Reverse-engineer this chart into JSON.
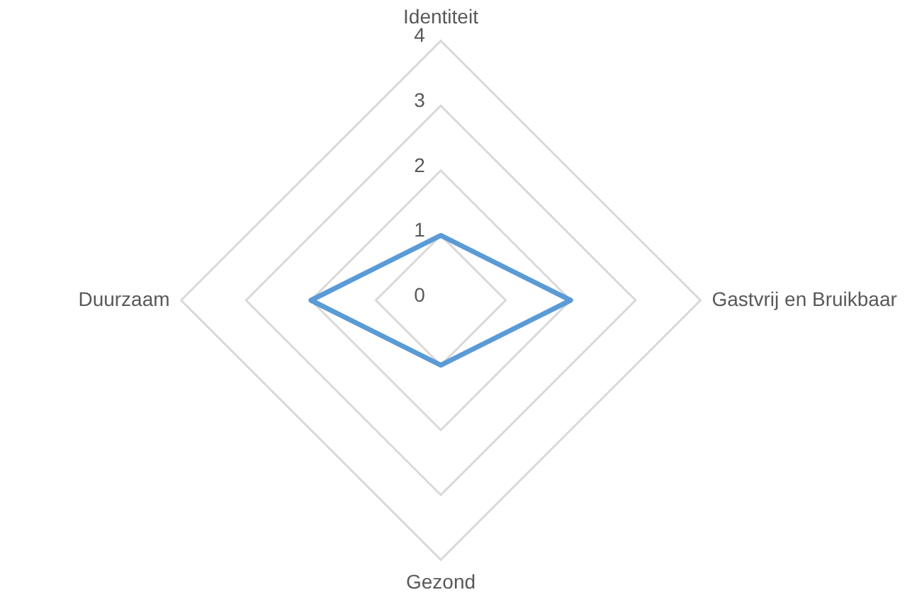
{
  "chart_data": {
    "type": "radar",
    "categories": [
      "Identiteit",
      "Gastvrij en Bruikbaar",
      "Gezond",
      "Duurzaam"
    ],
    "series": [
      {
        "color": "#5b9bd5",
        "values": [
          1,
          2,
          1,
          2
        ]
      }
    ],
    "ylim": [
      0,
      4
    ],
    "yticks": [
      0,
      1,
      2,
      3,
      4
    ],
    "grid": true,
    "legend": false,
    "marker": "none",
    "line_style": "solid"
  }
}
